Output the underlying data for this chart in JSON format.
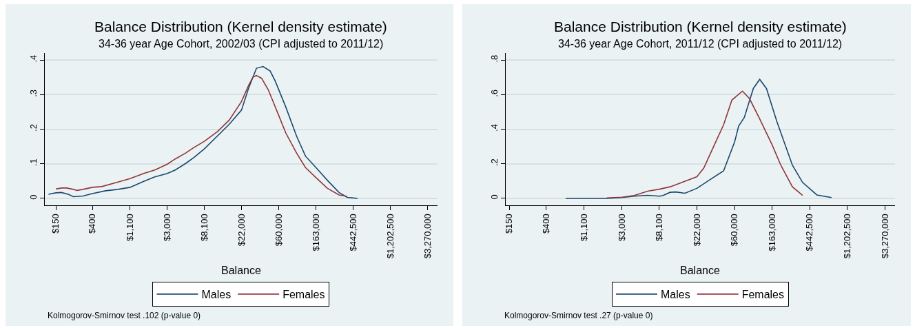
{
  "chart_data": [
    {
      "type": "line",
      "title": "Balance Distribution (Kernel density estimate)",
      "subtitle": "34-36 year Age Cohort, 2002/03 (CPI adjusted to 2011/12)",
      "xlabel": "Balance",
      "annotations": [
        "Kolmogorov-Smirnov test .102 (p-value 0)"
      ],
      "log": "x",
      "grid": "y",
      "legend": "bottom",
      "line_style": "solid",
      "xlim": [
        111,
        4280000
      ],
      "ylim": [
        -0.02,
        0.42
      ],
      "xticks": [
        {
          "value": 150,
          "label": "$150"
        },
        {
          "value": 400,
          "label": "$400"
        },
        {
          "value": 1100,
          "label": "$1,100"
        },
        {
          "value": 3000,
          "label": "$3,000"
        },
        {
          "value": 8100,
          "label": "$8,100"
        },
        {
          "value": 22000,
          "label": "$22,000"
        },
        {
          "value": 60000,
          "label": "$60,000"
        },
        {
          "value": 163000,
          "label": "$163,000"
        },
        {
          "value": 442500,
          "label": "$442,500"
        },
        {
          "value": 1202500,
          "label": "$1,202,500"
        },
        {
          "value": 3270000,
          "label": "$3,270,000"
        }
      ],
      "yticks": [
        0,
        {
          "value": 0.1,
          "label": ".1"
        },
        {
          "value": 0.2,
          "label": ".2"
        },
        {
          "value": 0.3,
          "label": ".3"
        },
        {
          "value": 0.4,
          "label": ".4"
        }
      ],
      "series": [
        {
          "name": "Males",
          "color": "#1a476f",
          "x": [
            123,
            150,
            174,
            209,
            240,
            311,
            400,
            572,
            796,
            1100,
            1590,
            2140,
            3000,
            3710,
            4910,
            6120,
            8100,
            11500,
            15800,
            22000,
            26600,
            32900,
            39300,
            47600,
            54700,
            72400,
            96700,
            123000,
            163000,
            222000,
            303000,
            377000,
            499000
          ],
          "values": [
            0.012,
            0.016,
            0.017,
            0.012,
            0.005,
            0.007,
            0.014,
            0.022,
            0.026,
            0.032,
            0.049,
            0.062,
            0.072,
            0.082,
            0.101,
            0.118,
            0.143,
            0.18,
            0.214,
            0.255,
            0.318,
            0.376,
            0.381,
            0.368,
            0.338,
            0.264,
            0.18,
            0.122,
            0.089,
            0.052,
            0.017,
            0.003,
            0.0
          ]
        },
        {
          "name": "Females",
          "color": "#90353b",
          "x": [
            150,
            174,
            200,
            240,
            265,
            311,
            400,
            513,
            796,
            1100,
            1590,
            2140,
            3000,
            3710,
            4910,
            6120,
            8100,
            11500,
            15800,
            22000,
            26600,
            30000,
            32900,
            37800,
            45200,
            60000,
            72400,
            96700,
            123000,
            163000,
            222000,
            303000,
            377000
          ],
          "values": [
            0.027,
            0.03,
            0.03,
            0.026,
            0.023,
            0.026,
            0.032,
            0.034,
            0.047,
            0.057,
            0.072,
            0.082,
            0.099,
            0.114,
            0.131,
            0.147,
            0.165,
            0.193,
            0.226,
            0.28,
            0.326,
            0.351,
            0.355,
            0.347,
            0.314,
            0.239,
            0.189,
            0.131,
            0.089,
            0.06,
            0.029,
            0.01,
            0.006
          ]
        }
      ]
    },
    {
      "type": "line",
      "title": "Balance Distribution (Kernel density estimate)",
      "subtitle": "34-36 year Age Cohort, 2011/12 (CPI adjusted to 2011/12)",
      "xlabel": "Balance",
      "annotations": [
        "Kolmogorov-Smirnov test .27 (p-value 0)"
      ],
      "log": "x",
      "grid": "y",
      "legend": "bottom",
      "line_style": "solid",
      "xlim": [
        136,
        4280000
      ],
      "ylim": [
        -0.04,
        0.84
      ],
      "xticks": [
        {
          "value": 150,
          "label": "$150"
        },
        {
          "value": 400,
          "label": "$400"
        },
        {
          "value": 1100,
          "label": "$1,100"
        },
        {
          "value": 3000,
          "label": "$3,000"
        },
        {
          "value": 8100,
          "label": "$8,100"
        },
        {
          "value": 22000,
          "label": "$22,000"
        },
        {
          "value": 60000,
          "label": "$60,000"
        },
        {
          "value": 163000,
          "label": "$163,000"
        },
        {
          "value": 442500,
          "label": "$442,500"
        },
        {
          "value": 1202500,
          "label": "$1,202,500"
        },
        {
          "value": 3270000,
          "label": "$3,270,000"
        }
      ],
      "yticks": [
        0,
        {
          "value": 0.2,
          "label": ".2"
        },
        {
          "value": 0.4,
          "label": ".4"
        },
        {
          "value": 0.6,
          "label": ".6"
        },
        {
          "value": 0.8,
          "label": ".8"
        }
      ],
      "series": [
        {
          "name": "Males",
          "color": "#1a476f",
          "x": [
            672,
            1100,
            2000,
            3000,
            4150,
            5940,
            8100,
            8950,
            10800,
            12600,
            16000,
            22000,
            31300,
            44800,
            60000,
            66800,
            77700,
            98700,
            117000,
            140000,
            185000,
            279000,
            366000,
            535000,
            790000
          ],
          "values": [
            0.0,
            0.0,
            0.0,
            0.005,
            0.013,
            0.018,
            0.013,
            0.017,
            0.035,
            0.037,
            0.03,
            0.058,
            0.109,
            0.159,
            0.326,
            0.418,
            0.468,
            0.635,
            0.688,
            0.635,
            0.443,
            0.192,
            0.092,
            0.02,
            0.005
          ]
        },
        {
          "name": "Females",
          "color": "#90353b",
          "x": [
            2000,
            3000,
            4150,
            5940,
            8100,
            10800,
            14800,
            22000,
            26400,
            35600,
            44800,
            55800,
            73900,
            89300,
            117000,
            163000,
            205000,
            279000,
            366000
          ],
          "values": [
            0.003,
            0.007,
            0.017,
            0.042,
            0.053,
            0.067,
            0.092,
            0.125,
            0.175,
            0.317,
            0.426,
            0.568,
            0.62,
            0.576,
            0.459,
            0.309,
            0.192,
            0.067,
            0.017
          ]
        }
      ]
    }
  ]
}
